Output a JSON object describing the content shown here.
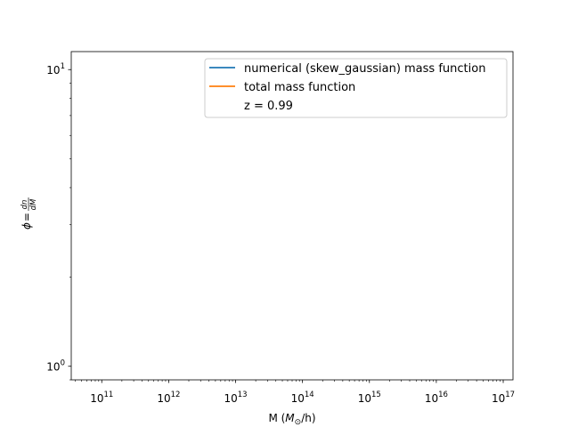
{
  "chart_data": {
    "type": "line",
    "title": "",
    "x_scale": "log",
    "y_scale": "log",
    "xlim": [
      35000000000.0,
      1.4e+17
    ],
    "ylim": [
      0.9,
      11.5
    ],
    "x_major_ticks": [
      {
        "value": 100000000000.0,
        "base": "10",
        "exp": "11"
      },
      {
        "value": 1000000000000.0,
        "base": "10",
        "exp": "12"
      },
      {
        "value": 10000000000000.0,
        "base": "10",
        "exp": "13"
      },
      {
        "value": 100000000000000.0,
        "base": "10",
        "exp": "14"
      },
      {
        "value": 1000000000000000.0,
        "base": "10",
        "exp": "15"
      },
      {
        "value": 1e+16,
        "base": "10",
        "exp": "16"
      },
      {
        "value": 1e+17,
        "base": "10",
        "exp": "17"
      }
    ],
    "y_major_ticks": [
      {
        "value": 1,
        "base": "10",
        "exp": "0"
      },
      {
        "value": 10,
        "base": "10",
        "exp": "1"
      }
    ],
    "xlabel": {
      "pre": "M (",
      "italic": "M",
      "sub": "⊙",
      "post": "/h)"
    },
    "ylabel": {
      "symbol": "ϕ",
      "eq": "=",
      "num": "dn",
      "den": "dM"
    },
    "series": [
      {
        "name": "numerical (skew_gaussian) mass function",
        "color": "#1f77b4",
        "x": [],
        "y": []
      },
      {
        "name": "total mass function",
        "color": "#ff7f0e",
        "x": [],
        "y": []
      }
    ],
    "annotation": "z = 0.99",
    "legend_position": "upper right",
    "grid": false
  }
}
